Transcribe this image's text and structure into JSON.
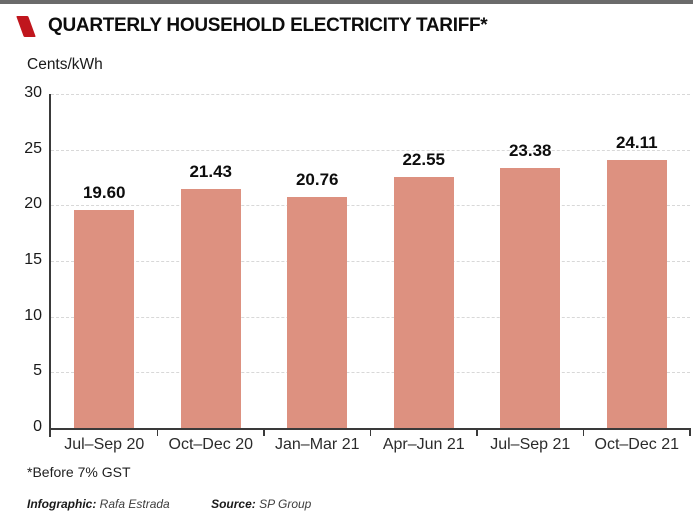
{
  "header": {
    "title": "QUARTERLY HOUSEHOLD ELECTRICITY TARIFF*"
  },
  "chart_data": {
    "type": "bar",
    "title": "QUARTERLY HOUSEHOLD ELECTRICITY TARIFF*",
    "unit_label": "Cents/kWh",
    "categories": [
      "Jul–Sep 20",
      "Oct–Dec 20",
      "Jan–Mar 21",
      "Apr–Jun 21",
      "Jul–Sep 21",
      "Oct–Dec 21"
    ],
    "values": [
      19.6,
      21.43,
      20.76,
      22.55,
      23.38,
      24.11
    ],
    "value_labels": [
      "19.60",
      "21.43",
      "20.76",
      "22.55",
      "23.38",
      "24.11"
    ],
    "yticks": [
      0,
      5,
      10,
      15,
      20,
      25,
      30
    ],
    "ylim": [
      0,
      30
    ],
    "xlabel": "",
    "ylabel": "Cents/kWh",
    "grid": true,
    "legend": false,
    "bar_color": "#dd9180"
  },
  "footer": {
    "note": "*Before 7% GST",
    "credit_label": "Infographic:",
    "credit_value": "Rafa Estrada",
    "source_label": "Source:",
    "source_value": "SP Group"
  },
  "colors": {
    "accent_red": "#c0161d",
    "bar": "#dd9180",
    "top_bar": "#6b6b6b",
    "axis": "#3a3a3a",
    "grid": "#d8d8d8"
  }
}
